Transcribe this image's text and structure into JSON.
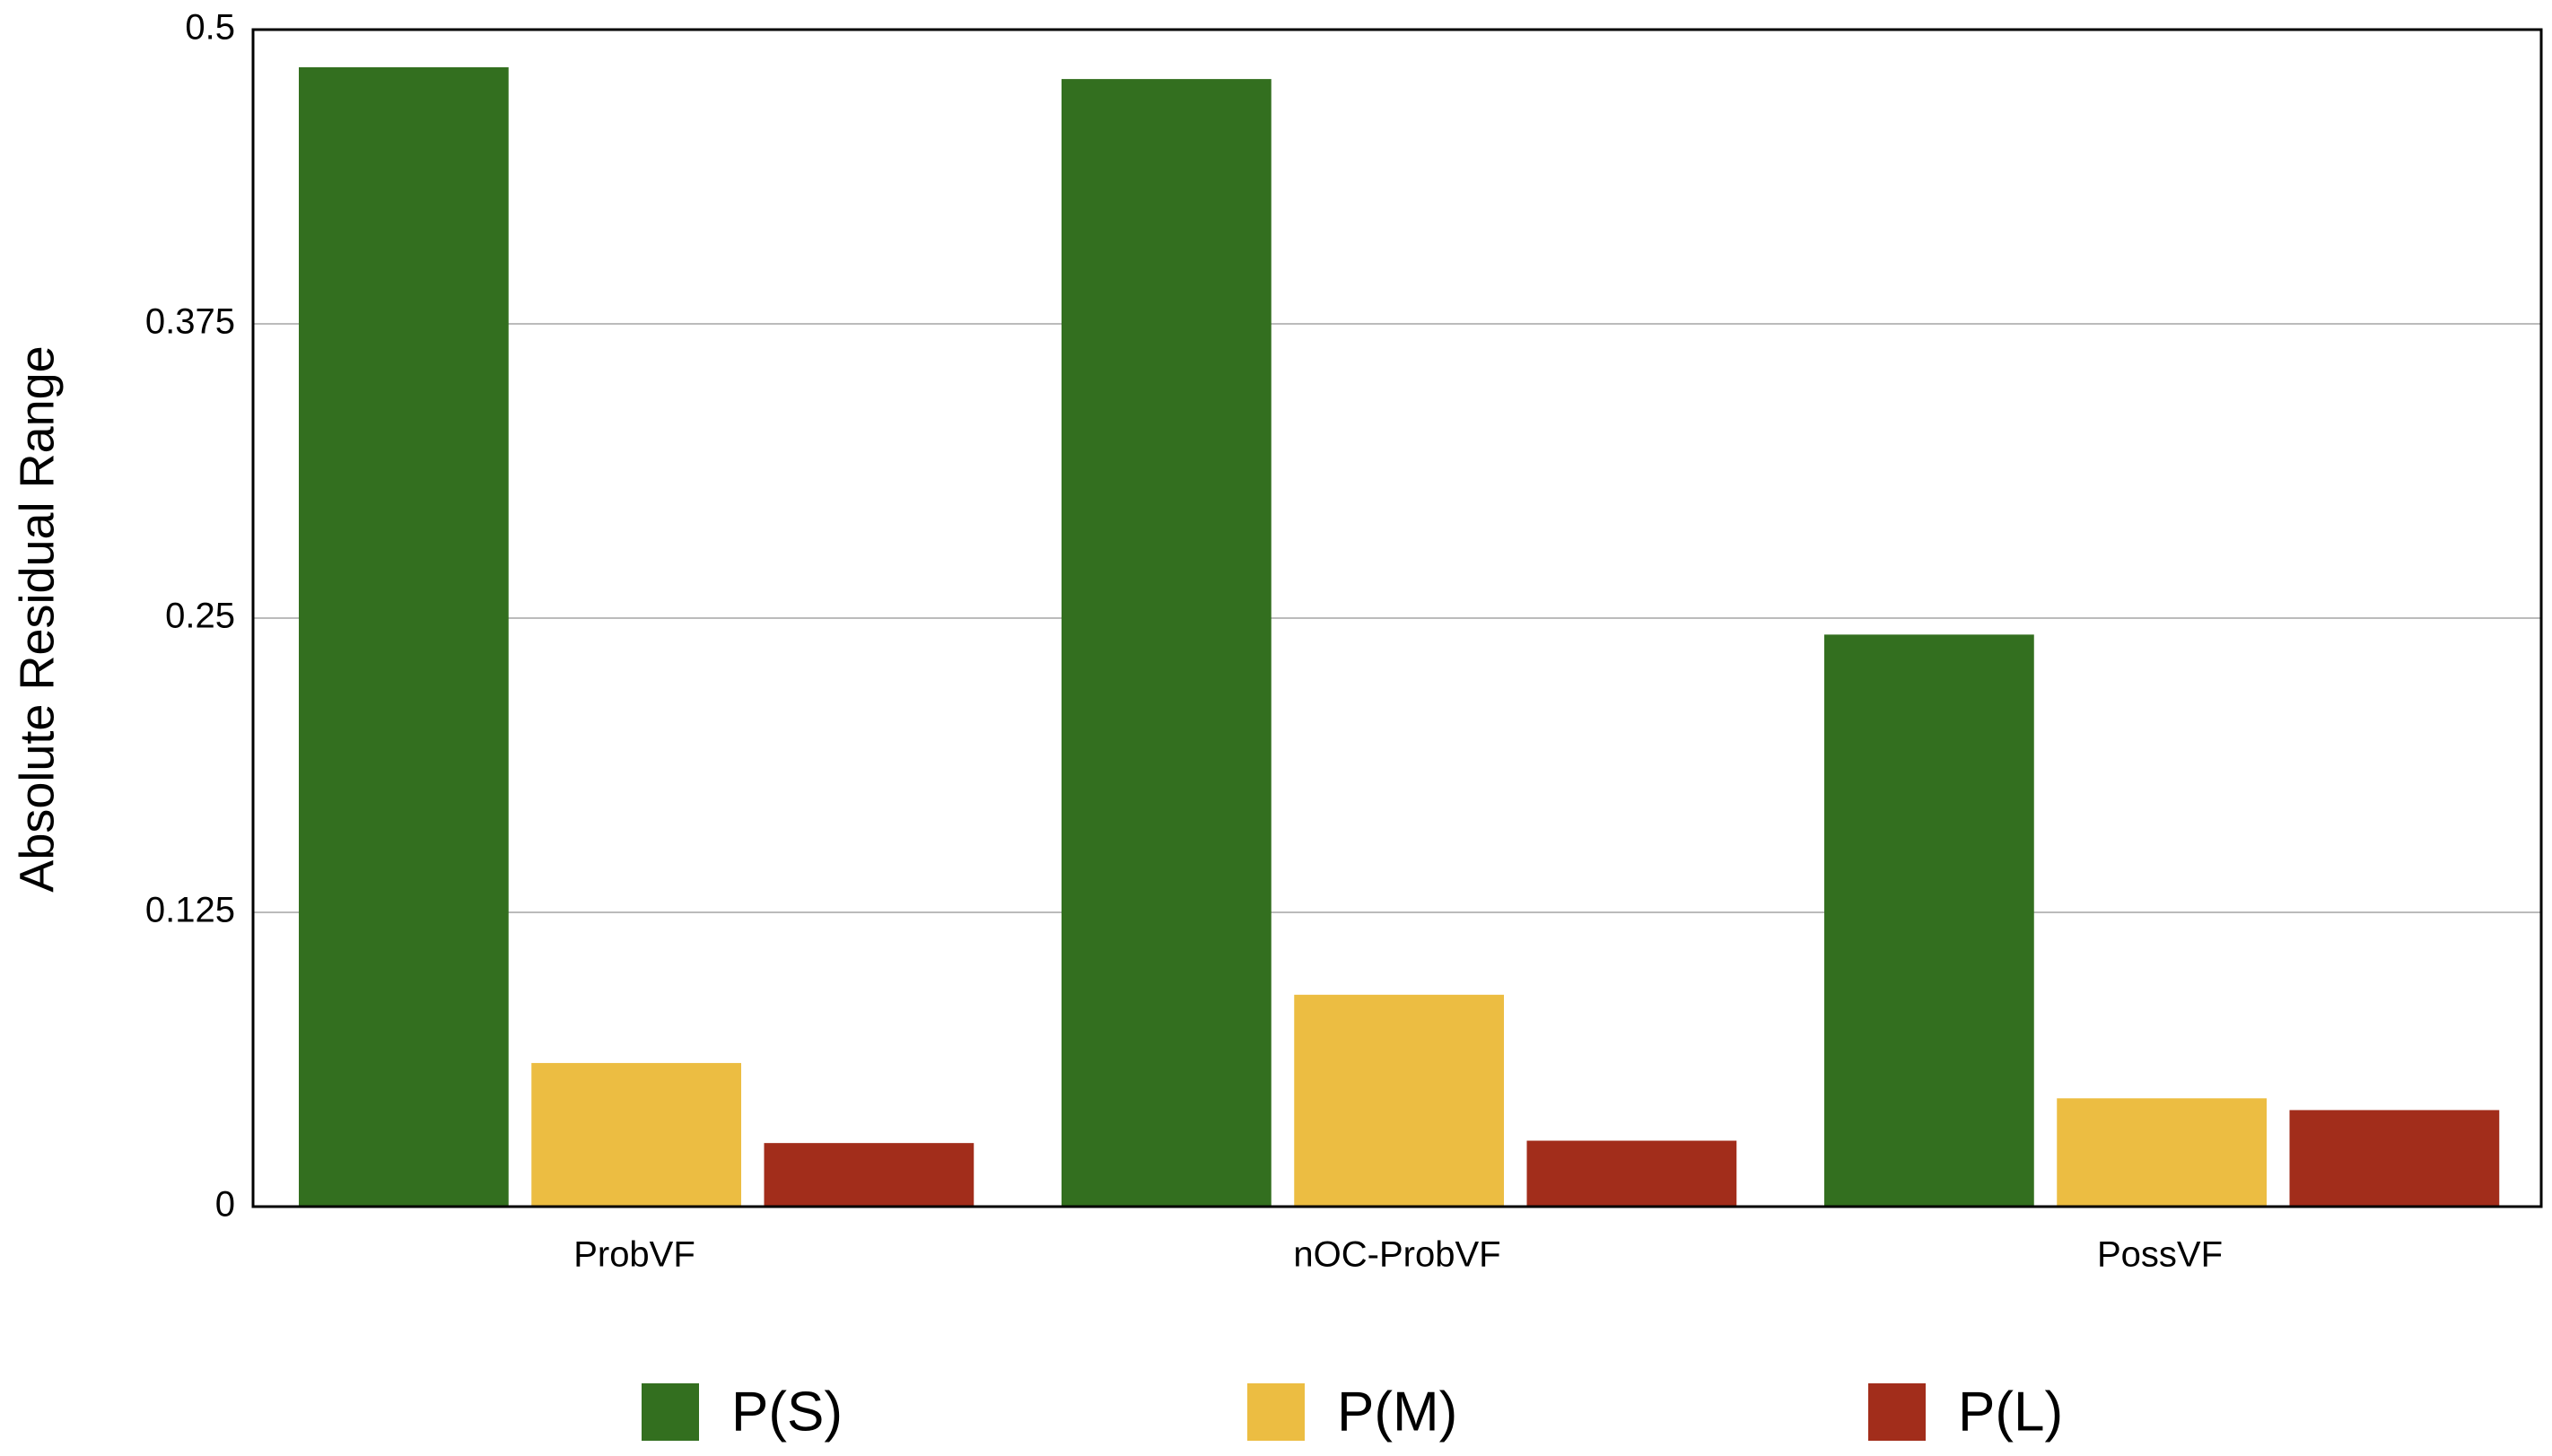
{
  "chart_data": {
    "type": "bar",
    "y_label": "Absolute Residual Range",
    "categories": [
      "ProbVF",
      "nOC-ProbVF",
      "PossVF"
    ],
    "series": [
      {
        "name": "P(S)",
        "color": "#336f1f",
        "values": [
          0.484,
          0.479,
          0.243
        ]
      },
      {
        "name": "P(M)",
        "color": "#ecbd42",
        "values": [
          0.061,
          0.09,
          0.046
        ]
      },
      {
        "name": "P(L)",
        "color": "#a22d1b",
        "values": [
          0.027,
          0.028,
          0.041
        ]
      }
    ],
    "ylim": [
      0,
      0.5
    ],
    "yticks": [
      0,
      0.125,
      0.25,
      0.375,
      0.5
    ],
    "grid": true
  }
}
